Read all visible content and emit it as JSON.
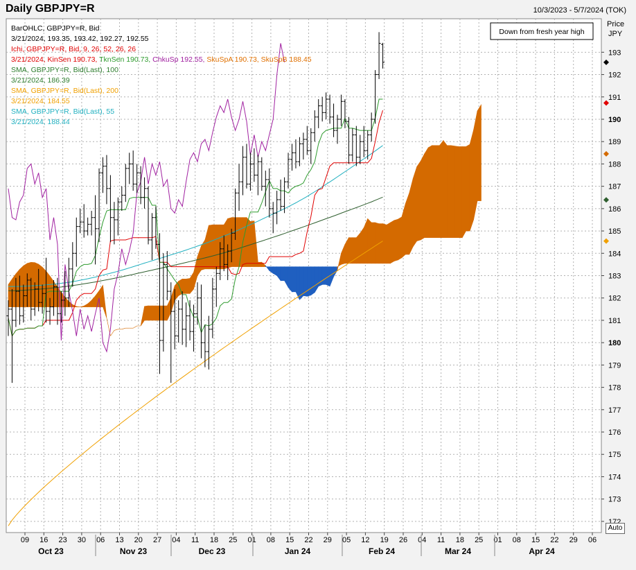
{
  "header": {
    "title": "Daily GBPJPY=R",
    "date_range": "10/3/2023 - 5/7/2024 (TOK)"
  },
  "price_axis": {
    "label_line1": "Price",
    "label_line2": "JPY"
  },
  "auto_label": "Auto",
  "callout": "Down from fresh year high",
  "legend": [
    {
      "text": "BarOHLC, GBPJPY=R, Bid",
      "color": "#000000"
    },
    {
      "text": "3/21/2024, 193.35, 193.42, 192.27, 192.55",
      "color": "#000000"
    },
    {
      "text": "Ichi, GBPJPY=R, Bid,  9, 26, 52, 26, 26",
      "color": "#e00000"
    },
    {
      "parts": [
        {
          "text": "3/21/2024, KinSen 190.73, ",
          "color": "#e00000"
        },
        {
          "text": "TknSen 190.73, ",
          "color": "#2e9b2e"
        },
        {
          "text": "ChkuSp 192.55, ",
          "color": "#a020a0"
        },
        {
          "text": "SkuSpA 190.73, ",
          "color": "#e07000"
        },
        {
          "text": "SkuSpB 188.45",
          "color": "#e07000"
        }
      ]
    },
    {
      "text": "SMA, GBPJPY=R, Bid(Last),  100",
      "color": "#2e7d2e"
    },
    {
      "text": "3/21/2024, 186.39",
      "color": "#2e7d2e"
    },
    {
      "text": "SMA, GBPJPY=R, Bid(Last),  200",
      "color": "#f0a000"
    },
    {
      "text": "3/21/2024, 184.55",
      "color": "#f0a000"
    },
    {
      "text": "SMA, GBPJPY=R, Bid(Last),  55",
      "color": "#20b0c0"
    },
    {
      "text": "3/21/2024, 188.44",
      "color": "#20b0c0"
    }
  ],
  "chart_data": {
    "type": "ohlc",
    "ylim": [
      171.5,
      194.5
    ],
    "yticks": [
      172,
      173,
      174,
      175,
      176,
      177,
      178,
      179,
      180,
      181,
      182,
      183,
      184,
      185,
      186,
      187,
      188,
      189,
      190,
      191,
      192,
      193
    ],
    "bold_yticks": [
      180,
      190
    ],
    "x_day_ticks": [
      "09",
      "16",
      "23",
      "30",
      "06",
      "13",
      "20",
      "27",
      "04",
      "11",
      "18",
      "25",
      "01",
      "08",
      "15",
      "22",
      "29",
      "05",
      "12",
      "19",
      "26",
      "04",
      "11",
      "18",
      "25",
      "01",
      "08",
      "15",
      "22",
      "29",
      "06"
    ],
    "months": [
      "Oct 23",
      "Nov 23",
      "Dec 23",
      "Jan 24",
      "Feb 24",
      "Mar 24",
      "Apr 24"
    ],
    "last_bar": {
      "date": "3/21/2024",
      "open": 193.35,
      "high": 193.42,
      "low": 192.27,
      "close": 192.55
    },
    "series_colors": {
      "bars": "#000000",
      "kijun": "#e00000",
      "tenkan": "#2e9b2e",
      "chikou": "#a020a0",
      "sma100": "#2e5e2e",
      "sma200": "#f0a000",
      "sma55": "#20b0c0",
      "cloud_up": "#d46a00",
      "cloud_down": "#1f5fc0"
    },
    "bars": [
      [
        181.2,
        181.9,
        180.3,
        181.5
      ],
      [
        181.5,
        182.4,
        178.2,
        181.0
      ],
      [
        181.0,
        182.9,
        180.7,
        182.3
      ],
      [
        182.3,
        183.0,
        180.8,
        181.2
      ],
      [
        181.2,
        182.6,
        180.9,
        182.1
      ],
      [
        182.1,
        183.1,
        181.6,
        182.8
      ],
      [
        182.8,
        182.9,
        181.0,
        181.5
      ],
      [
        181.5,
        182.7,
        181.2,
        182.4
      ],
      [
        182.4,
        183.3,
        181.4,
        181.8
      ],
      [
        181.8,
        182.6,
        181.3,
        182.2
      ],
      [
        182.2,
        183.8,
        180.9,
        181.4
      ],
      [
        181.4,
        182.0,
        180.8,
        181.6
      ],
      [
        181.6,
        182.8,
        181.2,
        182.5
      ],
      [
        182.5,
        182.9,
        180.8,
        181.3
      ],
      [
        181.3,
        182.3,
        180.9,
        181.9
      ],
      [
        181.9,
        183.2,
        181.2,
        182.0
      ],
      [
        182.0,
        183.8,
        181.6,
        183.3
      ],
      [
        183.3,
        184.5,
        182.5,
        184.0
      ],
      [
        184.0,
        185.6,
        183.4,
        185.2
      ],
      [
        185.2,
        186.0,
        184.9,
        185.4
      ],
      [
        185.4,
        186.2,
        184.7,
        185.0
      ],
      [
        185.0,
        185.6,
        184.8,
        185.3
      ],
      [
        185.3,
        185.9,
        184.8,
        185.6
      ],
      [
        185.6,
        186.6,
        183.5,
        185.1
      ],
      [
        185.1,
        187.8,
        184.5,
        187.6
      ],
      [
        187.6,
        188.3,
        186.7,
        187.9
      ],
      [
        187.9,
        188.4,
        186.2,
        186.9
      ],
      [
        186.9,
        187.5,
        184.5,
        185.6
      ],
      [
        185.6,
        186.3,
        184.4,
        185.5
      ],
      [
        185.5,
        186.5,
        184.8,
        186.3
      ],
      [
        186.3,
        187.0,
        185.9,
        186.6
      ],
      [
        186.6,
        188.0,
        186.3,
        187.8
      ],
      [
        187.8,
        188.5,
        187.1,
        188.0
      ],
      [
        188.0,
        188.6,
        186.8,
        187.1
      ],
      [
        187.1,
        188.0,
        186.7,
        187.6
      ],
      [
        187.6,
        187.9,
        186.2,
        186.5
      ],
      [
        186.5,
        187.4,
        186.0,
        186.9
      ],
      [
        186.9,
        187.0,
        184.4,
        184.6
      ],
      [
        184.6,
        185.8,
        183.7,
        185.6
      ],
      [
        185.6,
        186.1,
        184.2,
        184.4
      ],
      [
        184.4,
        184.9,
        178.6,
        180.1
      ],
      [
        180.1,
        184.0,
        179.6,
        183.5
      ],
      [
        183.5,
        184.1,
        181.9,
        182.3
      ],
      [
        182.3,
        182.7,
        178.2,
        181.4
      ],
      [
        181.4,
        182.4,
        179.7,
        180.3
      ],
      [
        180.3,
        181.9,
        180.0,
        181.5
      ],
      [
        181.5,
        182.3,
        179.9,
        180.6
      ],
      [
        180.6,
        181.8,
        179.8,
        181.2
      ],
      [
        181.2,
        181.9,
        180.1,
        180.5
      ],
      [
        180.5,
        181.7,
        179.6,
        181.3
      ],
      [
        181.3,
        182.7,
        180.8,
        182.0
      ],
      [
        182.0,
        182.6,
        179.3,
        180.0
      ],
      [
        180.0,
        180.8,
        178.9,
        179.6
      ],
      [
        179.6,
        181.2,
        178.8,
        180.6
      ],
      [
        180.6,
        182.9,
        180.2,
        182.4
      ],
      [
        182.4,
        183.4,
        181.6,
        183.1
      ],
      [
        183.1,
        184.5,
        182.8,
        184.2
      ],
      [
        184.2,
        184.8,
        183.2,
        183.5
      ],
      [
        183.5,
        184.4,
        182.8,
        184.1
      ],
      [
        184.1,
        185.1,
        183.6,
        184.9
      ],
      [
        184.9,
        186.9,
        184.6,
        186.7
      ],
      [
        186.7,
        188.0,
        185.9,
        187.2
      ],
      [
        187.2,
        188.8,
        186.6,
        188.3
      ],
      [
        188.3,
        188.9,
        186.9,
        187.1
      ],
      [
        187.1,
        188.5,
        186.8,
        188.0
      ],
      [
        188.0,
        188.7,
        187.2,
        187.5
      ],
      [
        187.5,
        188.4,
        186.6,
        188.1
      ],
      [
        188.1,
        188.3,
        186.8,
        187.0
      ],
      [
        187.0,
        187.7,
        186.1,
        187.3
      ],
      [
        187.3,
        187.8,
        185.6,
        186.0
      ],
      [
        186.0,
        186.3,
        184.9,
        185.8
      ],
      [
        185.8,
        186.8,
        185.3,
        186.4
      ],
      [
        186.4,
        187.3,
        185.9,
        186.1
      ],
      [
        186.1,
        187.4,
        185.8,
        187.2
      ],
      [
        187.2,
        188.5,
        186.9,
        188.2
      ],
      [
        188.2,
        188.9,
        187.7,
        188.5
      ],
      [
        188.5,
        189.1,
        187.8,
        188.1
      ],
      [
        188.1,
        189.2,
        187.9,
        188.9
      ],
      [
        188.9,
        189.4,
        188.2,
        189.1
      ],
      [
        189.1,
        189.7,
        188.4,
        188.6
      ],
      [
        188.6,
        189.6,
        188.0,
        189.4
      ],
      [
        189.4,
        190.4,
        189.0,
        190.1
      ],
      [
        190.1,
        190.9,
        189.6,
        190.6
      ],
      [
        190.6,
        191.0,
        189.9,
        190.3
      ],
      [
        190.3,
        191.2,
        190.0,
        190.9
      ],
      [
        190.9,
        191.1,
        189.8,
        190.1
      ],
      [
        190.1,
        190.7,
        189.2,
        189.5
      ],
      [
        189.5,
        190.2,
        188.9,
        190.0
      ],
      [
        190.0,
        191.1,
        189.7,
        190.8
      ],
      [
        190.8,
        190.9,
        189.6,
        189.9
      ],
      [
        189.9,
        190.1,
        188.0,
        188.4
      ],
      [
        188.4,
        189.6,
        188.1,
        189.3
      ],
      [
        189.3,
        189.7,
        187.9,
        188.3
      ],
      [
        188.3,
        189.3,
        188.0,
        189.0
      ],
      [
        189.0,
        189.7,
        188.3,
        188.6
      ],
      [
        188.6,
        189.5,
        188.2,
        189.3
      ],
      [
        189.3,
        190.3,
        189.0,
        190.0
      ],
      [
        190.0,
        192.2,
        189.8,
        192.0
      ],
      [
        192.0,
        193.9,
        191.8,
        193.4
      ],
      [
        193.35,
        193.42,
        192.27,
        192.55
      ]
    ]
  }
}
